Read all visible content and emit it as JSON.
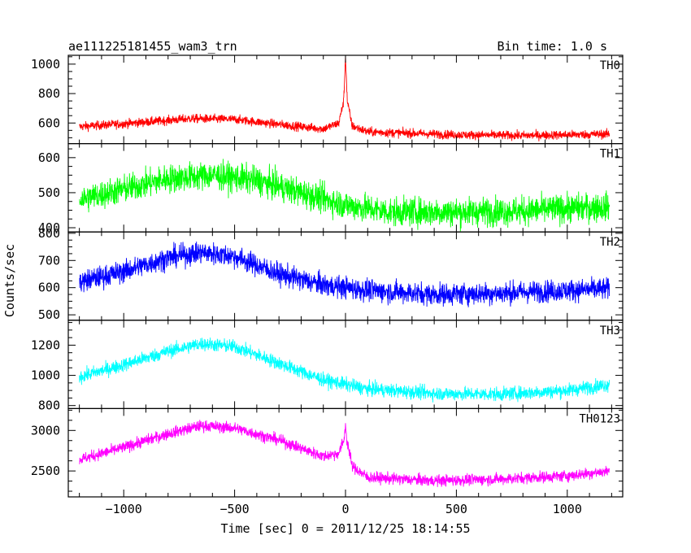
{
  "header": {
    "left_title": "ae111225181455_wam3_trn",
    "right_title": "Bin time: 1.0 s"
  },
  "chart_data": {
    "type": "line",
    "title": "ae111225181455_wam3_trn",
    "subtitle": "Bin time: 1.0 s",
    "xlabel": "Time [sec] 0 = 2011/12/25 18:14:55",
    "ylabel": "Counts/sec",
    "xlim": [
      -1250,
      1250
    ],
    "x_range": [
      -1200,
      1190
    ],
    "xticks": [
      -1000,
      -500,
      0,
      500,
      1000
    ],
    "xtick_labels": [
      "−1000",
      "−500",
      "0",
      "500",
      "1000"
    ],
    "grid": false,
    "series": [
      {
        "name": "TH0",
        "color": "#ff0000",
        "ylim": [
          460,
          1060
        ],
        "yticks": [
          600,
          800,
          1000
        ],
        "profile": [
          [
            -1200,
            575
          ],
          [
            -1000,
            595
          ],
          [
            -700,
            630
          ],
          [
            -500,
            625
          ],
          [
            -300,
            590
          ],
          [
            -100,
            560
          ],
          [
            -30,
            600
          ],
          [
            -8,
            750
          ],
          [
            0,
            1060
          ],
          [
            8,
            750
          ],
          [
            30,
            580
          ],
          [
            100,
            540
          ],
          [
            500,
            520
          ],
          [
            800,
            515
          ],
          [
            1000,
            520
          ],
          [
            1190,
            525
          ]
        ],
        "noise": 30
      },
      {
        "name": "TH1",
        "color": "#00ff00",
        "ylim": [
          388,
          640
        ],
        "yticks": [
          400,
          500,
          600
        ],
        "profile": [
          [
            -1200,
            480
          ],
          [
            -1000,
            510
          ],
          [
            -800,
            540
          ],
          [
            -600,
            550
          ],
          [
            -400,
            535
          ],
          [
            -200,
            500
          ],
          [
            0,
            465
          ],
          [
            200,
            445
          ],
          [
            500,
            445
          ],
          [
            800,
            448
          ],
          [
            1000,
            455
          ],
          [
            1190,
            460
          ]
        ],
        "noise": 40
      },
      {
        "name": "TH2",
        "color": "#0000ff",
        "ylim": [
          480,
          805
        ],
        "yticks": [
          500,
          600,
          700,
          800
        ],
        "profile": [
          [
            -1200,
            620
          ],
          [
            -1000,
            660
          ],
          [
            -800,
            710
          ],
          [
            -650,
            730
          ],
          [
            -500,
            715
          ],
          [
            -300,
            650
          ],
          [
            -100,
            610
          ],
          [
            100,
            590
          ],
          [
            400,
            575
          ],
          [
            700,
            580
          ],
          [
            1000,
            590
          ],
          [
            1190,
            595
          ]
        ],
        "noise": 40
      },
      {
        "name": "TH3",
        "color": "#00ffff",
        "ylim": [
          780,
          1365
        ],
        "yticks": [
          800,
          1000,
          1200
        ],
        "profile": [
          [
            -1200,
            990
          ],
          [
            -1000,
            1070
          ],
          [
            -800,
            1160
          ],
          [
            -650,
            1210
          ],
          [
            -500,
            1190
          ],
          [
            -300,
            1080
          ],
          [
            -100,
            970
          ],
          [
            100,
            910
          ],
          [
            400,
            880
          ],
          [
            700,
            875
          ],
          [
            1000,
            900
          ],
          [
            1190,
            940
          ]
        ],
        "noise": 45
      },
      {
        "name": "TH0123",
        "color": "#ff00ff",
        "ylim": [
          2180,
          3270
        ],
        "yticks": [
          2500,
          3000
        ],
        "profile": [
          [
            -1200,
            2640
          ],
          [
            -1000,
            2790
          ],
          [
            -800,
            2960
          ],
          [
            -650,
            3060
          ],
          [
            -500,
            3030
          ],
          [
            -300,
            2880
          ],
          [
            -100,
            2680
          ],
          [
            -30,
            2720
          ],
          [
            -5,
            2900
          ],
          [
            0,
            3100
          ],
          [
            5,
            2900
          ],
          [
            30,
            2560
          ],
          [
            100,
            2420
          ],
          [
            400,
            2380
          ],
          [
            700,
            2400
          ],
          [
            1000,
            2440
          ],
          [
            1190,
            2500
          ]
        ],
        "noise": 70
      }
    ]
  }
}
